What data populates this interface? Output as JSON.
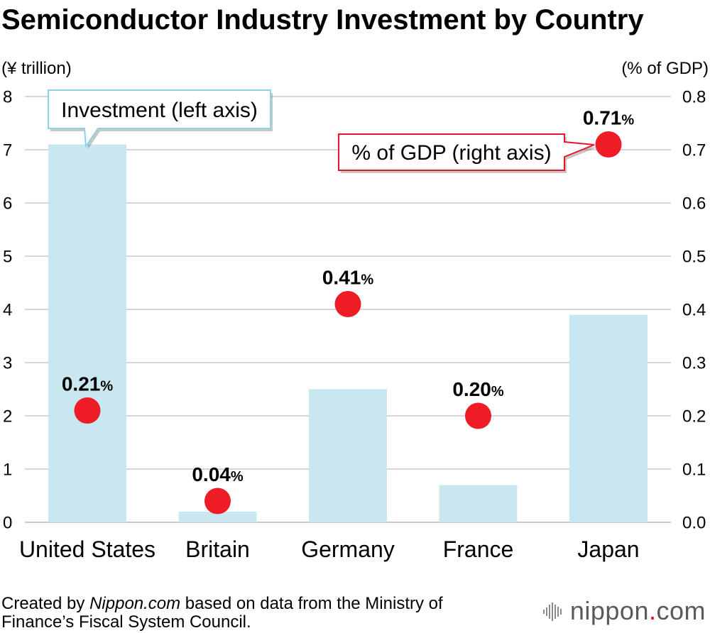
{
  "chart_data": {
    "type": "bar",
    "title": "Semiconductor Industry Investment by Country",
    "categories": [
      "United States",
      "Britain",
      "Germany",
      "France",
      "Japan"
    ],
    "series": [
      {
        "name": "Investment (left axis)",
        "type": "bar",
        "axis": "left",
        "values": [
          7.1,
          0.2,
          2.5,
          0.7,
          3.9
        ],
        "color": "#c8e7f1",
        "callout_border_color": "#8fd2e6"
      },
      {
        "name": "% of GDP (right axis)",
        "type": "scatter",
        "axis": "right",
        "values": [
          0.21,
          0.04,
          0.41,
          0.2,
          0.71
        ],
        "data_labels": [
          "0.21",
          "0.04",
          "0.41",
          "0.20",
          "0.71"
        ],
        "data_label_suffix": "%",
        "color": "#ee1c25",
        "callout_border_color": "#e8142c"
      }
    ],
    "left_axis": {
      "label": "(¥ trillion)",
      "range": [
        0,
        8
      ],
      "ticks": [
        "0",
        "1",
        "2",
        "3",
        "4",
        "5",
        "6",
        "7",
        "8"
      ]
    },
    "right_axis": {
      "label": "(% of GDP)",
      "range": [
        0,
        0.8
      ],
      "ticks": [
        "0.0",
        "0.1",
        "0.2",
        "0.3",
        "0.4",
        "0.5",
        "0.6",
        "0.7",
        "0.8"
      ]
    },
    "grid": true,
    "grid_color": "#c9c9c9",
    "legend": "callouts"
  },
  "footer": {
    "prefix": "Created by ",
    "source_name": "Nippon.com",
    "line1_rest": " based on data from the Ministry of",
    "line2": "Finance’s Fiscal System Council."
  },
  "logo": {
    "name": "nippon",
    "dot": ".",
    "tld": "com",
    "icon": "waveform-icon",
    "text_color": "#5a5a5a",
    "dot_color": "#e60012",
    "icon_color": "#8a8a8a"
  }
}
